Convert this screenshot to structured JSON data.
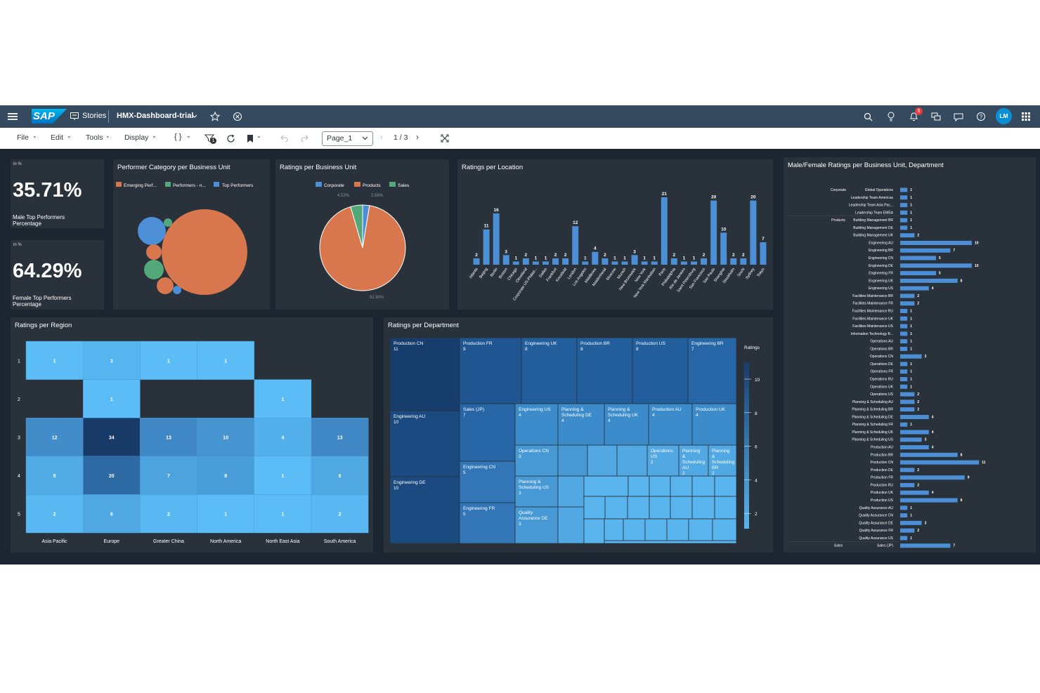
{
  "shell": {
    "logo": "SAP",
    "nav_label": "Stories",
    "story_title": "HMX-Dashboard-trial",
    "notification_count": "5",
    "avatar_initials": "LM"
  },
  "toolbar": {
    "file": "File",
    "edit": "Edit",
    "tools": "Tools",
    "display": "Display",
    "code_brackets": "{ }",
    "filter_badge": "1",
    "page_select": "Page_1",
    "page_indicator": "1 / 3"
  },
  "kpis": [
    {
      "unit": "in %",
      "value": "35.71%",
      "label": "Male Top Performers Percentage"
    },
    {
      "unit": "in %",
      "value": "64.29%",
      "label": "Female Top Performers Percentage"
    }
  ],
  "colors": {
    "orange": "#d8774d",
    "green": "#52a878",
    "blue": "#4c8fd6",
    "canvas": "#1c2630",
    "tile": "#29313a"
  },
  "bubble": {
    "title": "Performer Category per Business Unit",
    "legend": [
      "Emerging Perf...",
      "Performers - n...",
      "Top Performers"
    ]
  },
  "pie": {
    "title": "Ratings per Business Unit",
    "legend": [
      "Corporate",
      "Products",
      "Sales"
    ],
    "slices": [
      {
        "name": "Corporate",
        "pct": 2.58,
        "label": "2.58%"
      },
      {
        "name": "Sales",
        "pct": 4.52,
        "label": "4.52%"
      },
      {
        "name": "Products",
        "pct": 92.9,
        "label": "92.90%"
      }
    ]
  },
  "location": {
    "title": "Ratings per Location",
    "categories": [
      "Atlanta",
      "Beijing",
      "Berlin",
      "Boston",
      "Chicago",
      "Cleveland",
      "Corporate US-Philad...",
      "Dallas",
      "Frankfurt",
      "Knoxfield",
      "London",
      "Los Angeles",
      "Middlesex",
      "Maidenhead",
      "Moscow",
      "Munich",
      "New Brunswick",
      "New York",
      "New York Manhattan",
      "Paris",
      "Philadelphia",
      "Rio de Janeiro",
      "Saint Petersburg",
      "San Francisco",
      "Sao Paulo",
      "Shanghai",
      "Stockholm",
      "Sochi",
      "Sydney",
      "Tokyo"
    ],
    "values": [
      2,
      11,
      16,
      3,
      1,
      2,
      1,
      1,
      2,
      2,
      12,
      1,
      4,
      2,
      1,
      1,
      3,
      1,
      1,
      21,
      2,
      1,
      1,
      2,
      20,
      10,
      2,
      2,
      20,
      7
    ]
  },
  "region": {
    "title": "Ratings per Region",
    "columns": [
      "Asia Pacific",
      "Europe",
      "Greater China",
      "North America",
      "North East Asia",
      "South America"
    ],
    "rows": [
      "1",
      "2",
      "3",
      "4",
      "5"
    ],
    "cells": [
      [
        1,
        3,
        1,
        1,
        null,
        null
      ],
      [
        null,
        1,
        null,
        null,
        1,
        null
      ],
      [
        12,
        34,
        13,
        10,
        4,
        13
      ],
      [
        5,
        20,
        7,
        8,
        1,
        6
      ],
      [
        2,
        6,
        2,
        1,
        1,
        2
      ]
    ]
  },
  "department": {
    "title": "Ratings per Department",
    "legend_title": "Ratings",
    "legend_ticks": [
      "10",
      "8",
      "6",
      "4",
      "2"
    ],
    "labeled": [
      {
        "name": "Production CN",
        "value": "11"
      },
      {
        "name": "Production FR",
        "value": "9"
      },
      {
        "name": "Engineering UK",
        "value": "8"
      },
      {
        "name": "Production BR",
        "value": "8"
      },
      {
        "name": "Production US",
        "value": "8"
      },
      {
        "name": "Engineering BR",
        "value": "7"
      },
      {
        "name": "Engineering AU",
        "value": "10"
      },
      {
        "name": "Sales (JP)",
        "value": "7"
      },
      {
        "name": "Engineering US",
        "value": "4"
      },
      {
        "name": "Planning & Scheduling DE",
        "value": "4"
      },
      {
        "name": "Planning & Scheduling UK",
        "value": "4"
      },
      {
        "name": "Production AU",
        "value": "4"
      },
      {
        "name": "Production UK",
        "value": "4"
      },
      {
        "name": "Operations CN",
        "value": "3"
      },
      {
        "name": "Operations US",
        "value": "2"
      },
      {
        "name": "Planning & Scheduling AU",
        "value": "2"
      },
      {
        "name": "Planning & Scheduling BR",
        "value": "2"
      },
      {
        "name": "Engineering CN",
        "value": "5"
      },
      {
        "name": "Planning & Scheduling US",
        "value": "3"
      },
      {
        "name": "Engineering DE",
        "value": "10"
      },
      {
        "name": "Engineering FR",
        "value": "5"
      },
      {
        "name": "Quality Assurance DE",
        "value": "3"
      }
    ]
  },
  "mf": {
    "title": "Male/Female Ratings per Business Unit, Department",
    "groups": [
      {
        "unit": "Corporate",
        "rows": [
          [
            "Global Operations",
            1
          ],
          [
            "Leadership Team Americas",
            1
          ],
          [
            "Leadership Team Asia Pac...",
            1
          ],
          [
            "Leadership Team EMEA",
            1
          ]
        ]
      },
      {
        "unit": "Products",
        "rows": [
          [
            "Building Management BR",
            1
          ],
          [
            "Building Management DE",
            1
          ],
          [
            "Building Management UK",
            2
          ],
          [
            "Engineering AU",
            10
          ],
          [
            "Engineering BR",
            7
          ],
          [
            "Engineering CN",
            5
          ],
          [
            "Engineering DE",
            10
          ],
          [
            "Engineering FR",
            5
          ],
          [
            "Engineering UK",
            8
          ],
          [
            "Engineering US",
            4
          ],
          [
            "Facilities Maintenance BR",
            2
          ],
          [
            "Facilities Maintenance FR",
            2
          ],
          [
            "Facilities Maintenance RU",
            1
          ],
          [
            "Facilities Maintenance UK",
            1
          ],
          [
            "Facilities Maintenance US",
            1
          ],
          [
            "Information Technology B...",
            1
          ],
          [
            "Operations AU",
            1
          ],
          [
            "Operations BR",
            1
          ],
          [
            "Operations CN",
            3
          ],
          [
            "Operations DE",
            1
          ],
          [
            "Operations FR",
            1
          ],
          [
            "Operations RU",
            1
          ],
          [
            "Operations UK",
            1
          ],
          [
            "Operations US",
            2
          ],
          [
            "Planning & Scheduling AU",
            2
          ],
          [
            "Planning & Scheduling BR",
            2
          ],
          [
            "Planning & Scheduling DE",
            4
          ],
          [
            "Planning & Scheduling FR",
            1
          ],
          [
            "Planning & Scheduling UK",
            4
          ],
          [
            "Planning & Scheduling US",
            3
          ],
          [
            "Production AU",
            4
          ],
          [
            "Production BR",
            8
          ],
          [
            "Production CN",
            11
          ],
          [
            "Production DE",
            2
          ],
          [
            "Production FR",
            9
          ],
          [
            "Production RU",
            2
          ],
          [
            "Production UK",
            4
          ],
          [
            "Production US",
            8
          ],
          [
            "Quality Assurance AU",
            1
          ],
          [
            "Quality Assurance CN",
            1
          ],
          [
            "Quality Assurance DE",
            3
          ],
          [
            "Quality Assurance FR",
            2
          ],
          [
            "Quality Assurance US",
            1
          ]
        ]
      },
      {
        "unit": "Sales",
        "rows": [
          [
            "Sales (JP)",
            7
          ]
        ]
      }
    ]
  }
}
